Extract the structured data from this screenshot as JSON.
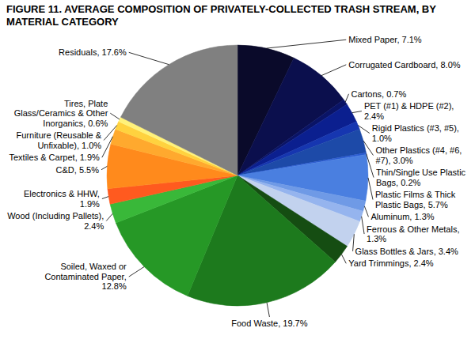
{
  "chart_data": {
    "type": "pie",
    "title": "FIGURE 11. AVERAGE COMPOSITION OF PRIVATELY-COLLECTED TRASH STREAM, BY MATERIAL CATEGORY",
    "categories": [
      "Mixed Paper",
      "Corrugated Cardboard",
      "Cartons",
      "PET (#1) & HDPE (#2)",
      "Rigid Plastics (#3, #5)",
      "Other Plastics (#4, #6, #7)",
      "Thin/Single Use Plastic Bags",
      "Plastic Films & Thick Plastic Bags",
      "Aluminum",
      "Ferrous & Other Metals",
      "Glass Bottles & Jars",
      "Yard Trimmings",
      "Food Waste",
      "Soiled, Waxed or Contaminated Paper",
      "Wood (Including Pallets)",
      "Electronics & HHW",
      "C&D",
      "Textiles & Carpet",
      "Furniture (Reusable & Unfixable)",
      "Tires, Plate Glass/Ceramics & Other Inorganics",
      "Residuals"
    ],
    "values": [
      7.1,
      8.0,
      0.7,
      2.4,
      1.0,
      3.0,
      0.2,
      5.7,
      1.3,
      1.3,
      3.4,
      2.4,
      19.7,
      12.8,
      2.4,
      1.9,
      5.5,
      1.9,
      1.0,
      0.6,
      17.6
    ],
    "value_labels": [
      "7.1%",
      "8.0%",
      "0.7%",
      "2.4%",
      "1.0%",
      "3.0%",
      "0.2%",
      "5.7%",
      "1.3%",
      "1.3%",
      "3.4%",
      "2.4%",
      "19.7%",
      "12.8%",
      "2.4%",
      "1.9%",
      "5.5%",
      "1.9%",
      "1.0%",
      "0.6%",
      "17.6%"
    ],
    "colors": [
      "#0a0a2a",
      "#0b0f4d",
      "#0a1466",
      "#0b1f8f",
      "#1636b0",
      "#1d4aa8",
      "#2a5bd0",
      "#4a7fe0",
      "#6f9ae6",
      "#95b4ee",
      "#c2d2ee",
      "#154d12",
      "#1d7a1d",
      "#269826",
      "#39b839",
      "#ff5a1f",
      "#ff8a1c",
      "#ffa92e",
      "#ffd23f",
      "#fff27a",
      "#808080"
    ],
    "data_labels": true
  }
}
